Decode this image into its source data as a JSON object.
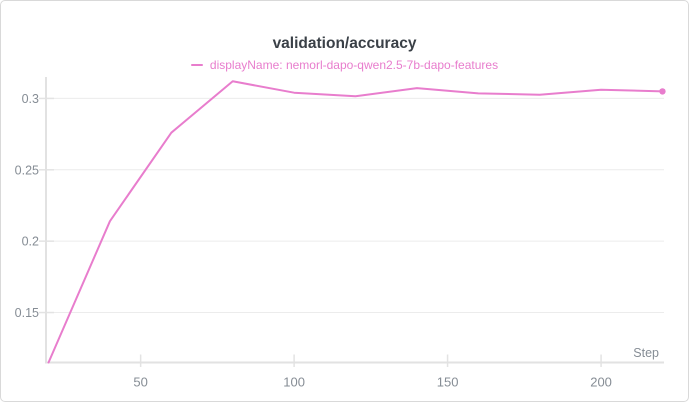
{
  "chart_data": {
    "type": "line",
    "title": "validation/accuracy",
    "legend_label": "displayName: nemorl-dapo-qwen2.5-7b-dapo-features",
    "series_name": "nemorl-dapo-qwen2.5-7b-dapo-features",
    "xlabel": "Step",
    "ylabel": "",
    "x": [
      20,
      40,
      60,
      80,
      100,
      120,
      140,
      160,
      180,
      200,
      220
    ],
    "series": [
      {
        "name": "nemorl-dapo-qwen2.5-7b-dapo-features",
        "values": [
          0.115,
          0.214,
          0.276,
          0.312,
          0.304,
          0.3015,
          0.3072,
          0.3035,
          0.3026,
          0.3061,
          0.3049
        ]
      }
    ],
    "xlim": [
      19.5,
      220.5
    ],
    "ylim": [
      0.115,
      0.315
    ],
    "xticks": [
      50,
      100,
      150,
      200
    ],
    "xtick_labels": [
      "50",
      "100",
      "150",
      "200"
    ],
    "yticks": [
      0.15,
      0.2,
      0.25,
      0.3
    ],
    "ytick_labels": [
      "0.15",
      "0.2",
      "0.25",
      "0.3"
    ],
    "grid": "horizontal-only",
    "legend_position": "top-center",
    "end_marker": true,
    "colors": {
      "line": "#e87dcd",
      "title": "#3a4047",
      "tick_label": "#868d95",
      "gridline": "#ececec",
      "tick": "#e3e3e3",
      "axis": "#e2e2e2",
      "background": "#ffffff",
      "border": "#d9d9d9"
    }
  }
}
